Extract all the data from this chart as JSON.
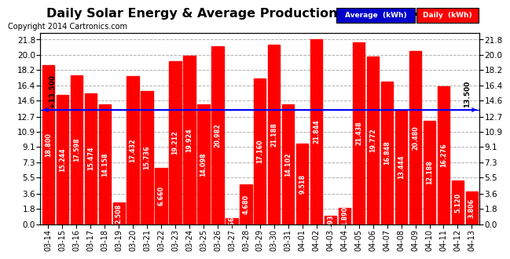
{
  "title": "Daily Solar Energy & Average Production Mon Apr 14 06:42",
  "copyright": "Copyright 2014 Cartronics.com",
  "categories": [
    "03-14",
    "03-15",
    "03-16",
    "03-17",
    "03-18",
    "03-19",
    "03-20",
    "03-21",
    "03-22",
    "03-23",
    "03-24",
    "03-25",
    "03-26",
    "03-27",
    "03-28",
    "03-29",
    "03-30",
    "03-31",
    "04-01",
    "04-02",
    "04-03",
    "04-04",
    "04-05",
    "04-06",
    "04-07",
    "04-08",
    "04-09",
    "04-10",
    "04-11",
    "04-12",
    "04-13"
  ],
  "values": [
    18.8,
    15.244,
    17.598,
    15.474,
    14.158,
    2.508,
    17.432,
    15.736,
    6.66,
    19.212,
    19.924,
    14.098,
    20.982,
    0.664,
    4.68,
    17.16,
    21.188,
    14.102,
    9.518,
    21.844,
    0.932,
    1.89,
    21.438,
    19.772,
    16.848,
    13.444,
    20.48,
    12.188,
    16.276,
    5.12,
    3.806
  ],
  "average": 13.5,
  "bar_color": "#ff0000",
  "average_line_color": "#0000ff",
  "background_color": "#ffffff",
  "grid_color": "#b0b0b0",
  "yticks": [
    0.0,
    1.8,
    3.6,
    5.5,
    7.3,
    9.1,
    10.9,
    12.7,
    14.6,
    16.4,
    18.2,
    20.0,
    21.8
  ],
  "ytick_labels": [
    "0.0",
    "1.8",
    "3.6",
    "5.5",
    "7.3",
    "9.1",
    "10.9",
    "12.7",
    "14.6",
    "16.4",
    "18.2",
    "20.0",
    "21.8"
  ],
  "avg_label_left": "+13.500",
  "avg_label_right": "→ 13.500",
  "legend_avg_color": "#0000cc",
  "legend_daily_color": "#ff0000",
  "legend_text_color": "#ffffff",
  "title_fontsize": 11.5,
  "copyright_fontsize": 7,
  "bar_label_fontsize": 5.8,
  "tick_fontsize": 7,
  "ytick_fontsize": 7.5,
  "ymax": 22.6
}
